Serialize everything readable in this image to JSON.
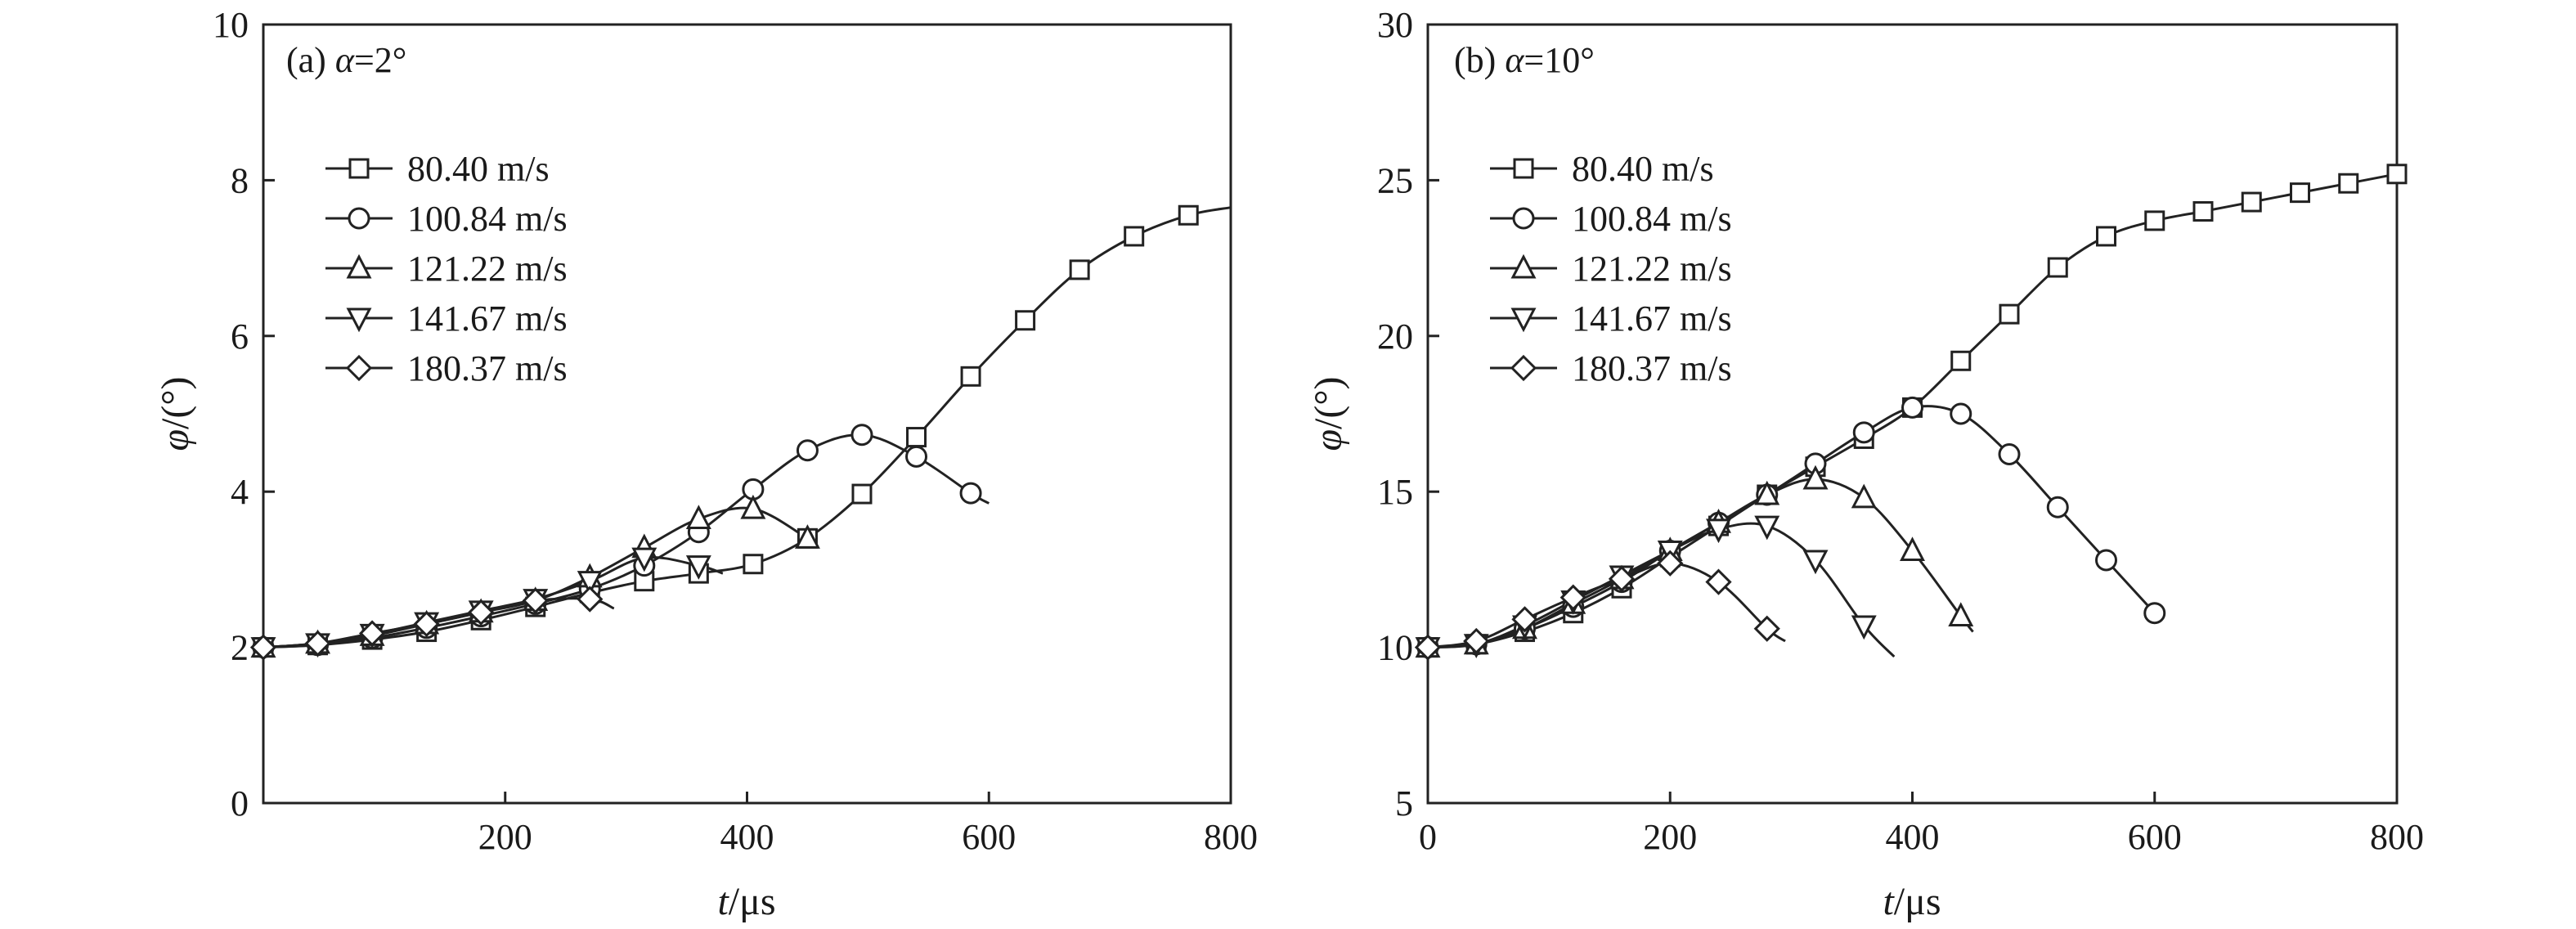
{
  "chart_data": [
    {
      "type": "line",
      "panel_label": "(a) ",
      "panel_var": "α",
      "panel_value": "=2°",
      "xlabel_var": "t",
      "xlabel_unit": "/μs",
      "ylabel_var": "φ",
      "ylabel_unit": "/(°)",
      "xlim": [
        0,
        800
      ],
      "ylim": [
        0,
        10
      ],
      "xticks": [
        200,
        400,
        600,
        800
      ],
      "yticks": [
        0,
        2,
        4,
        6,
        8,
        10
      ],
      "legend_position": "upper-left",
      "series": [
        {
          "name": "80.40 m/s",
          "marker": "square",
          "x": [
            0,
            45,
            90,
            135,
            180,
            225,
            270,
            315,
            360,
            405,
            450,
            495,
            540,
            585,
            630,
            675,
            720,
            765,
            800
          ],
          "y": [
            2.0,
            2.03,
            2.1,
            2.2,
            2.35,
            2.52,
            2.7,
            2.85,
            2.95,
            3.07,
            3.4,
            3.97,
            4.7,
            5.48,
            6.2,
            6.85,
            7.28,
            7.55,
            7.65
          ]
        },
        {
          "name": "100.84 m/s",
          "marker": "circle",
          "x": [
            0,
            45,
            90,
            135,
            180,
            225,
            270,
            315,
            360,
            405,
            450,
            495,
            540,
            585,
            600
          ],
          "y": [
            2.0,
            2.03,
            2.12,
            2.25,
            2.4,
            2.56,
            2.75,
            3.05,
            3.48,
            4.03,
            4.53,
            4.73,
            4.45,
            3.98,
            3.85
          ]
        },
        {
          "name": "121.22 m/s",
          "marker": "triangle-up",
          "x": [
            0,
            45,
            90,
            135,
            180,
            225,
            270,
            315,
            360,
            405,
            450
          ],
          "y": [
            2.0,
            2.05,
            2.15,
            2.3,
            2.45,
            2.6,
            2.9,
            3.28,
            3.65,
            3.78,
            3.4
          ]
        },
        {
          "name": "141.67 m/s",
          "marker": "triangle-down",
          "x": [
            0,
            45,
            90,
            135,
            180,
            225,
            270,
            315,
            360,
            380
          ],
          "y": [
            2.0,
            2.05,
            2.17,
            2.32,
            2.47,
            2.62,
            2.85,
            3.15,
            3.05,
            2.95
          ]
        },
        {
          "name": "180.37 m/s",
          "marker": "diamond",
          "x": [
            0,
            45,
            90,
            135,
            180,
            225,
            270,
            290
          ],
          "y": [
            2.0,
            2.05,
            2.18,
            2.3,
            2.45,
            2.6,
            2.62,
            2.5
          ]
        }
      ]
    },
    {
      "type": "line",
      "panel_label": "(b) ",
      "panel_var": "α",
      "panel_value": "=10°",
      "xlabel_var": "t",
      "xlabel_unit": "/μs",
      "ylabel_var": "φ",
      "ylabel_unit": "/(°)",
      "xlim": [
        0,
        800
      ],
      "ylim": [
        5,
        30
      ],
      "xticks": [
        0,
        200,
        400,
        600,
        800
      ],
      "yticks": [
        5,
        10,
        15,
        20,
        25,
        30
      ],
      "legend_position": "upper-left",
      "series": [
        {
          "name": "80.40 m/s",
          "marker": "square",
          "x": [
            0,
            40,
            80,
            120,
            160,
            200,
            240,
            280,
            320,
            360,
            400,
            440,
            480,
            520,
            560,
            600,
            640,
            680,
            720,
            760,
            800
          ],
          "y": [
            10.0,
            10.1,
            10.5,
            11.1,
            11.9,
            12.9,
            13.9,
            14.9,
            15.8,
            16.7,
            17.7,
            19.2,
            20.7,
            22.2,
            23.2,
            23.7,
            24.0,
            24.3,
            24.6,
            24.9,
            25.2
          ]
        },
        {
          "name": "100.84 m/s",
          "marker": "circle",
          "x": [
            0,
            40,
            80,
            120,
            160,
            200,
            240,
            280,
            320,
            360,
            400,
            440,
            480,
            520,
            560,
            600
          ],
          "y": [
            10.0,
            10.1,
            10.6,
            11.3,
            12.1,
            13.1,
            14.0,
            14.9,
            15.9,
            16.9,
            17.7,
            17.5,
            16.2,
            14.5,
            12.8,
            11.1
          ]
        },
        {
          "name": "121.22 m/s",
          "marker": "triangle-up",
          "x": [
            0,
            40,
            80,
            120,
            160,
            200,
            240,
            280,
            320,
            360,
            400,
            440,
            450
          ],
          "y": [
            10.0,
            10.1,
            10.6,
            11.4,
            12.2,
            13.1,
            14.0,
            14.9,
            15.4,
            14.8,
            13.1,
            11.0,
            10.5
          ]
        },
        {
          "name": "141.67 m/s",
          "marker": "triangle-down",
          "x": [
            0,
            40,
            80,
            120,
            160,
            200,
            240,
            280,
            320,
            360,
            385
          ],
          "y": [
            10.0,
            10.1,
            10.7,
            11.5,
            12.3,
            13.1,
            13.8,
            13.9,
            12.8,
            10.7,
            9.7
          ]
        },
        {
          "name": "180.37 m/s",
          "marker": "diamond",
          "x": [
            0,
            40,
            80,
            120,
            160,
            200,
            240,
            280,
            295
          ],
          "y": [
            10.0,
            10.2,
            10.9,
            11.6,
            12.2,
            12.7,
            12.1,
            10.6,
            10.2
          ]
        }
      ]
    }
  ]
}
